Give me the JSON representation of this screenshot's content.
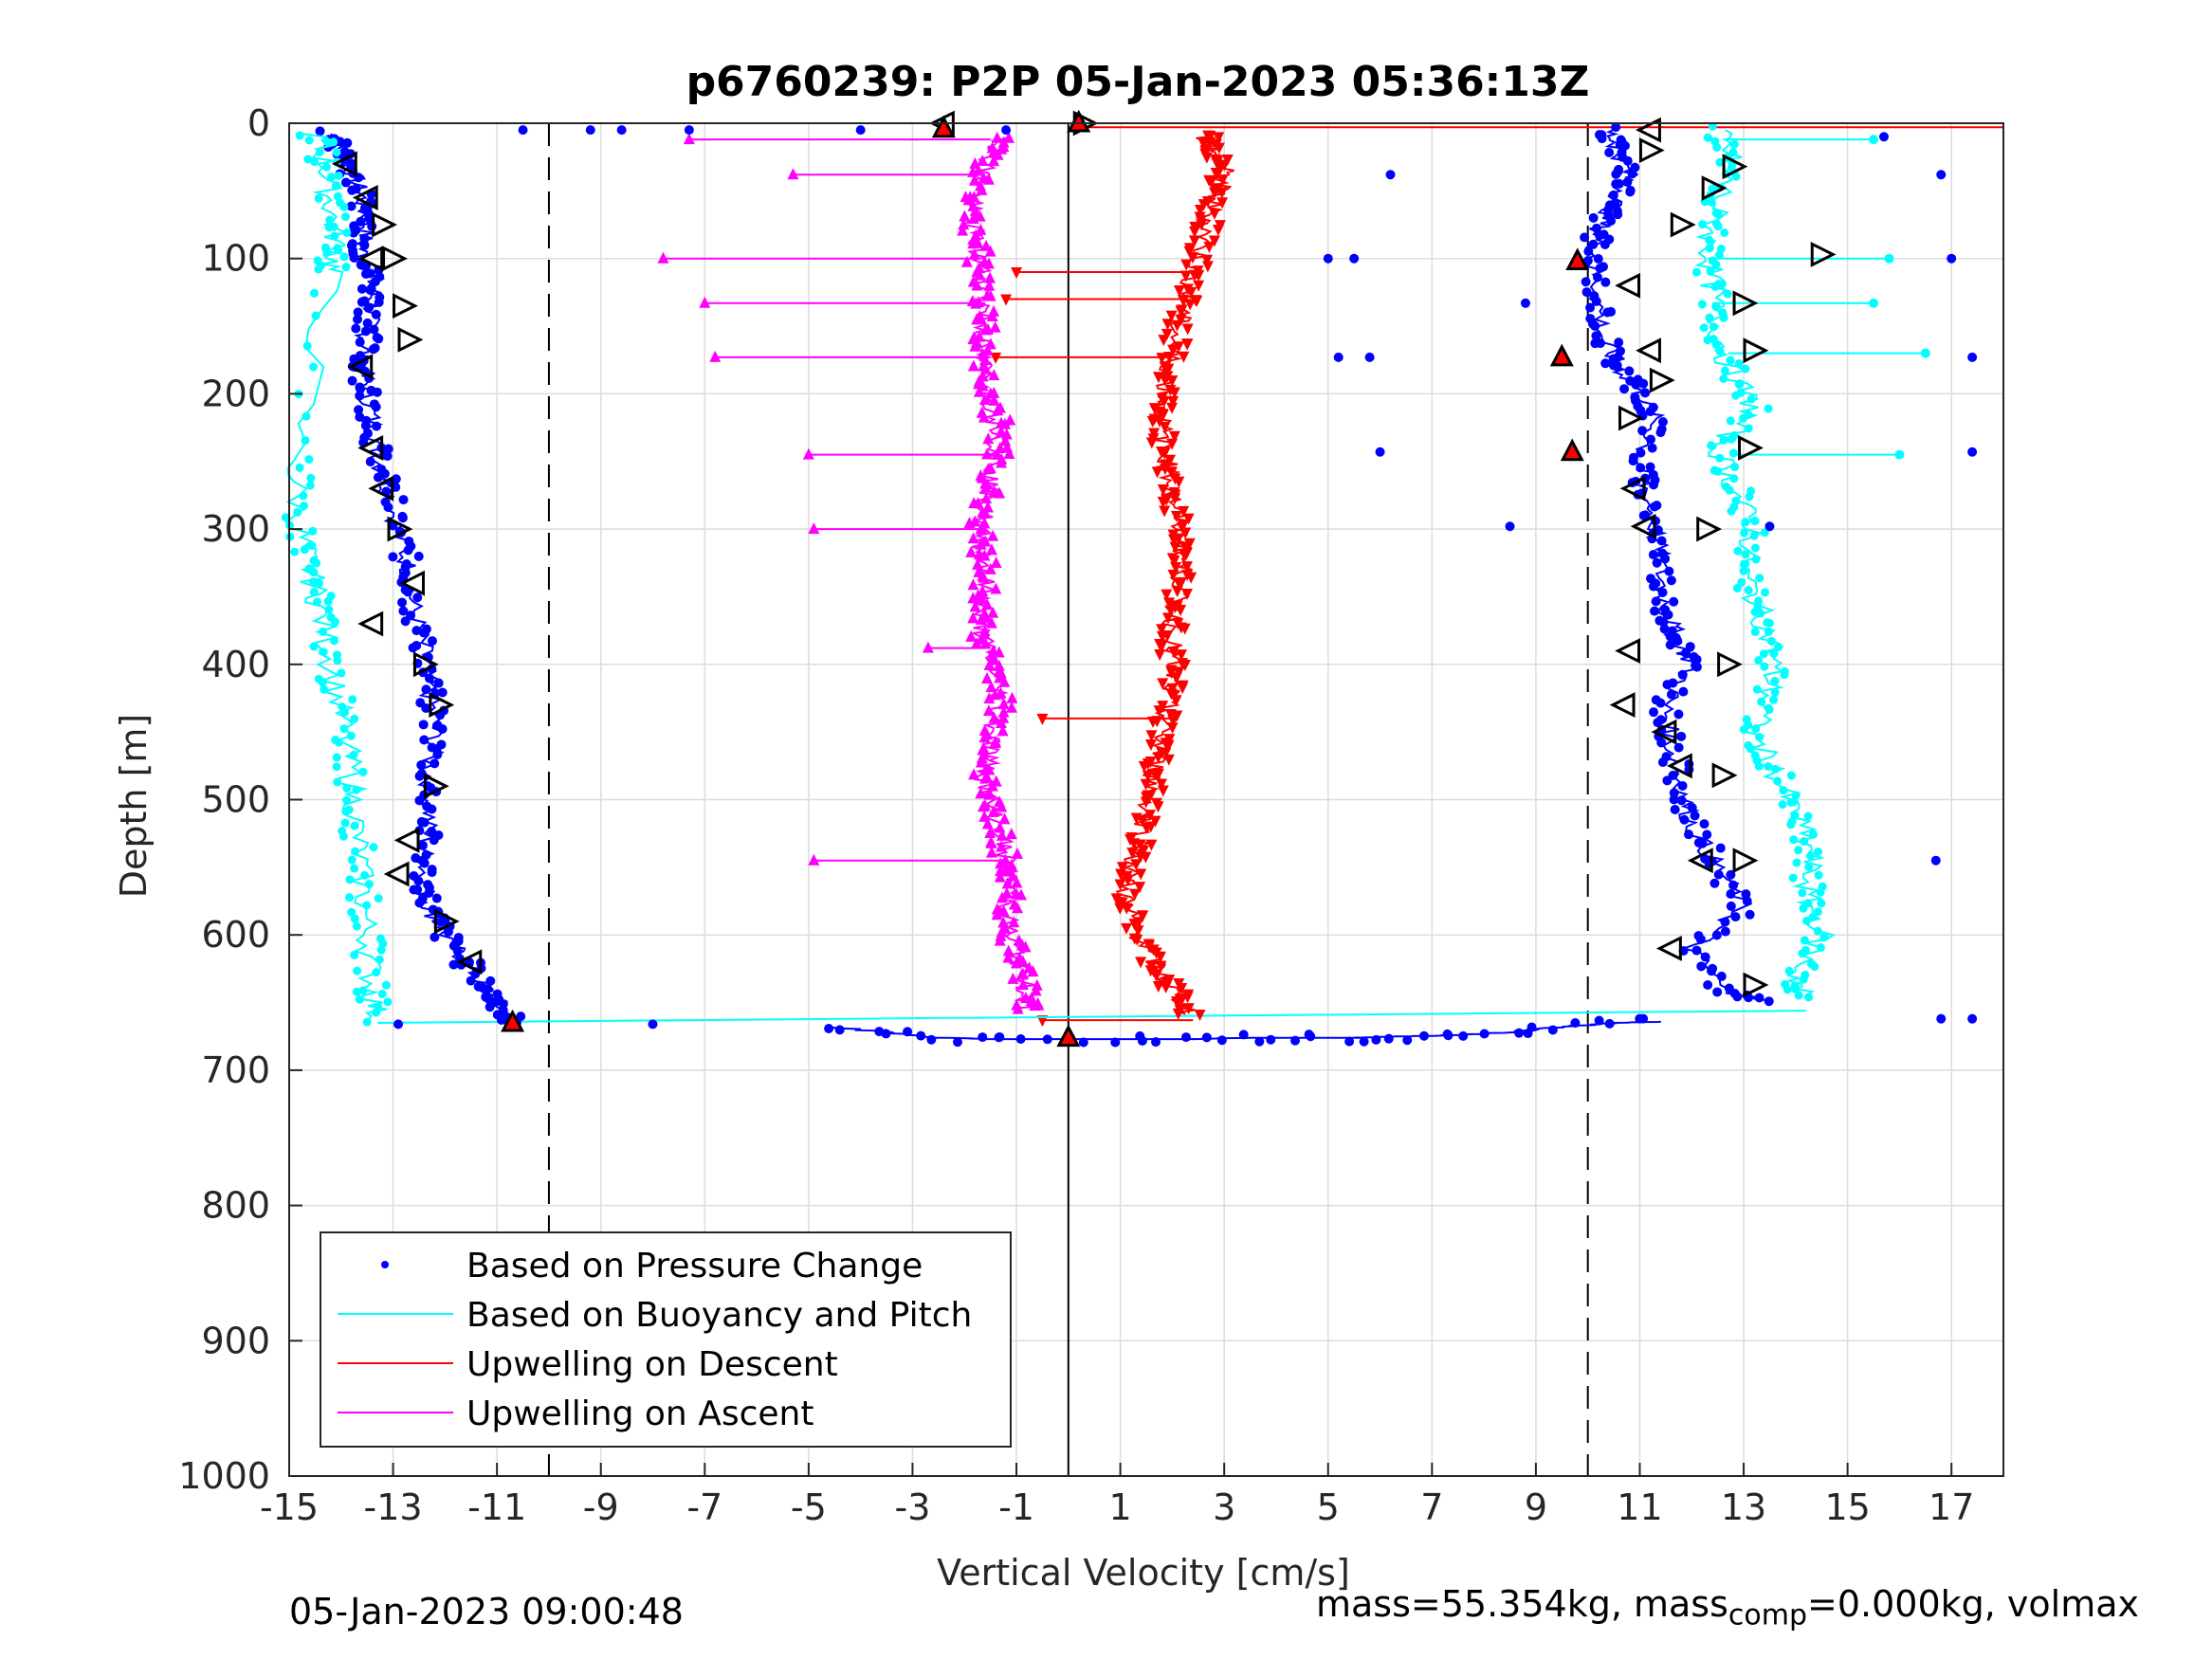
{
  "chart_data": {
    "type": "scatter",
    "title": "p6760239: P2P 05-Jan-2023 05:36:13Z",
    "xlabel": "Vertical Velocity [cm/s]",
    "ylabel": "Depth [m]",
    "xlim": [
      -15,
      18
    ],
    "ylim": [
      0,
      1000
    ],
    "y_reversed": true,
    "grid": true,
    "x_ticks": [
      -15,
      -13,
      -11,
      -9,
      -7,
      -5,
      -3,
      -1,
      1,
      3,
      5,
      7,
      9,
      11,
      13,
      15,
      17
    ],
    "y_ticks": [
      0,
      100,
      200,
      300,
      400,
      500,
      600,
      700,
      800,
      900,
      1000
    ],
    "reference_lines": [
      {
        "x": -10,
        "style": "dashed"
      },
      {
        "x": 0,
        "style": "solid"
      },
      {
        "x": 10,
        "style": "dashed"
      }
    ],
    "legend": {
      "placement": "bottom-left",
      "entries": [
        {
          "label": "Based on Pressure Change",
          "color": "#0000ff",
          "marker": "dot"
        },
        {
          "label": "Based on Buoyancy and Pitch",
          "color": "#00ffff",
          "marker": "line"
        },
        {
          "label": "Upwelling on Descent",
          "color": "#ff0000",
          "marker": "line"
        },
        {
          "label": "Upwelling on Ascent",
          "color": "#ff00ff",
          "marker": "line"
        }
      ]
    },
    "series": [
      {
        "key": "pressure_descent",
        "color": "#0000ff",
        "points": [
          [
            -14.2,
            8
          ],
          [
            -14.0,
            20
          ],
          [
            -13.8,
            35
          ],
          [
            -13.6,
            55
          ],
          [
            -13.5,
            75
          ],
          [
            -13.6,
            95
          ],
          [
            -13.4,
            115
          ],
          [
            -13.4,
            135
          ],
          [
            -13.5,
            155
          ],
          [
            -13.6,
            175
          ],
          [
            -13.5,
            195
          ],
          [
            -13.4,
            220
          ],
          [
            -13.3,
            245
          ],
          [
            -13.1,
            270
          ],
          [
            -12.9,
            300
          ],
          [
            -12.7,
            330
          ],
          [
            -12.6,
            360
          ],
          [
            -12.4,
            390
          ],
          [
            -12.3,
            420
          ],
          [
            -12.2,
            450
          ],
          [
            -12.3,
            480
          ],
          [
            -12.3,
            510
          ],
          [
            -12.4,
            540
          ],
          [
            -12.4,
            560
          ],
          [
            -12.3,
            580
          ],
          [
            -12.0,
            600
          ],
          [
            -11.6,
            620
          ],
          [
            -11.2,
            640
          ],
          [
            -10.9,
            655
          ],
          [
            -10.7,
            665
          ]
        ]
      },
      {
        "key": "buoyancy_descent",
        "color": "#00ffff",
        "points": [
          [
            -14.5,
            8
          ],
          [
            -14.3,
            30
          ],
          [
            -14.2,
            60
          ],
          [
            -14.1,
            90
          ],
          [
            -14.2,
            110
          ],
          [
            -14.9,
            250
          ],
          [
            -14.8,
            300
          ],
          [
            -14.6,
            330
          ],
          [
            -14.4,
            360
          ],
          [
            -14.2,
            400
          ],
          [
            -14.0,
            440
          ],
          [
            -13.8,
            480
          ],
          [
            -13.7,
            520
          ],
          [
            -13.6,
            560
          ],
          [
            -13.5,
            600
          ],
          [
            -13.4,
            640
          ],
          [
            -13.3,
            665
          ]
        ]
      },
      {
        "key": "pressure_ascent",
        "color": "#0000ff",
        "points": [
          [
            10.4,
            5
          ],
          [
            10.6,
            20
          ],
          [
            10.8,
            40
          ],
          [
            10.5,
            60
          ],
          [
            10.2,
            80
          ],
          [
            10.1,
            100
          ],
          [
            10.2,
            130
          ],
          [
            10.3,
            160
          ],
          [
            10.6,
            180
          ],
          [
            11.0,
            200
          ],
          [
            11.3,
            220
          ],
          [
            11.0,
            250
          ],
          [
            11.1,
            270
          ],
          [
            11.3,
            300
          ],
          [
            11.4,
            330
          ],
          [
            11.5,
            360
          ],
          [
            11.7,
            380
          ],
          [
            12.0,
            400
          ],
          [
            11.5,
            430
          ],
          [
            11.6,
            460
          ],
          [
            11.8,
            490
          ],
          [
            12.0,
            520
          ],
          [
            12.5,
            550
          ],
          [
            13.0,
            580
          ],
          [
            12.0,
            610
          ],
          [
            12.6,
            640
          ],
          [
            13.5,
            650
          ]
        ]
      },
      {
        "key": "buoyancy_ascent",
        "color": "#00ffff",
        "points": [
          [
            12.5,
            5
          ],
          [
            12.8,
            30
          ],
          [
            12.5,
            60
          ],
          [
            12.3,
            90
          ],
          [
            12.4,
            120
          ],
          [
            12.5,
            150
          ],
          [
            12.7,
            180
          ],
          [
            13.2,
            210
          ],
          [
            12.5,
            240
          ],
          [
            12.8,
            270
          ],
          [
            13.2,
            300
          ],
          [
            13.0,
            330
          ],
          [
            13.3,
            360
          ],
          [
            13.6,
            390
          ],
          [
            13.5,
            420
          ],
          [
            13.2,
            450
          ],
          [
            13.6,
            480
          ],
          [
            14.0,
            510
          ],
          [
            14.3,
            540
          ],
          [
            14.2,
            570
          ],
          [
            14.5,
            600
          ],
          [
            14.0,
            630
          ],
          [
            14.2,
            650
          ]
        ]
      },
      {
        "key": "bottom_transition",
        "color": "#0000ff",
        "points": [
          [
            -4.5,
            668
          ],
          [
            -3.5,
            672
          ],
          [
            -2.5,
            676
          ],
          [
            -1.5,
            677
          ],
          [
            -0.5,
            677
          ],
          [
            0.5,
            677
          ],
          [
            1.5,
            677
          ],
          [
            2.5,
            677
          ],
          [
            3.5,
            676
          ],
          [
            4.5,
            676
          ],
          [
            5.5,
            676
          ],
          [
            6.5,
            675
          ],
          [
            7.5,
            674
          ],
          [
            8.5,
            672
          ],
          [
            9.5,
            668
          ],
          [
            10.5,
            665
          ],
          [
            11.5,
            664
          ]
        ]
      },
      {
        "key": "upwelling_descent",
        "color": "#ff0000",
        "points": [
          [
            2.6,
            10
          ],
          [
            2.8,
            20
          ],
          [
            3.0,
            35
          ],
          [
            2.9,
            50
          ],
          [
            2.7,
            70
          ],
          [
            2.6,
            90
          ],
          [
            2.4,
            110
          ],
          [
            2.3,
            130
          ],
          [
            2.1,
            150
          ],
          [
            2.0,
            170
          ],
          [
            1.9,
            190
          ],
          [
            1.8,
            210
          ],
          [
            1.8,
            230
          ],
          [
            1.9,
            250
          ],
          [
            2.0,
            270
          ],
          [
            2.1,
            290
          ],
          [
            2.2,
            310
          ],
          [
            2.2,
            330
          ],
          [
            2.1,
            350
          ],
          [
            2.0,
            370
          ],
          [
            2.0,
            390
          ],
          [
            2.0,
            410
          ],
          [
            1.9,
            430
          ],
          [
            1.8,
            450
          ],
          [
            1.7,
            470
          ],
          [
            1.6,
            490
          ],
          [
            1.5,
            510
          ],
          [
            1.4,
            530
          ],
          [
            1.2,
            550
          ],
          [
            1.1,
            570
          ],
          [
            1.2,
            590
          ],
          [
            1.5,
            610
          ],
          [
            1.8,
            630
          ],
          [
            2.1,
            645
          ],
          [
            2.4,
            660
          ]
        ]
      },
      {
        "key": "upwelling_ascent",
        "color": "#ff00ff",
        "points": [
          [
            -1.2,
            10
          ],
          [
            -1.5,
            25
          ],
          [
            -1.7,
            45
          ],
          [
            -1.9,
            65
          ],
          [
            -1.8,
            85
          ],
          [
            -1.7,
            105
          ],
          [
            -1.6,
            125
          ],
          [
            -1.6,
            145
          ],
          [
            -1.7,
            165
          ],
          [
            -1.6,
            185
          ],
          [
            -1.5,
            205
          ],
          [
            -1.3,
            225
          ],
          [
            -1.4,
            245
          ],
          [
            -1.5,
            265
          ],
          [
            -1.6,
            285
          ],
          [
            -1.7,
            305
          ],
          [
            -1.6,
            325
          ],
          [
            -1.6,
            345
          ],
          [
            -1.7,
            365
          ],
          [
            -1.6,
            385
          ],
          [
            -1.4,
            405
          ],
          [
            -1.3,
            425
          ],
          [
            -1.4,
            445
          ],
          [
            -1.5,
            465
          ],
          [
            -1.6,
            485
          ],
          [
            -1.5,
            505
          ],
          [
            -1.3,
            525
          ],
          [
            -1.2,
            545
          ],
          [
            -1.1,
            565
          ],
          [
            -1.2,
            585
          ],
          [
            -1.1,
            605
          ],
          [
            -0.9,
            625
          ],
          [
            -0.8,
            645
          ],
          [
            -0.8,
            655
          ]
        ]
      }
    ],
    "spikes": [
      {
        "color": "#ff00ff",
        "segments": [
          [
            -7.3,
            12,
            -1.5
          ],
          [
            -5.3,
            38,
            -1.6
          ],
          [
            -7.8,
            100,
            -1.7
          ],
          [
            -7.0,
            133,
            -1.6
          ],
          [
            -6.8,
            173,
            -1.7
          ],
          [
            -5.0,
            245,
            -1.4
          ],
          [
            -4.9,
            300,
            -1.6
          ],
          [
            -4.9,
            545,
            -1.2
          ],
          [
            -2.7,
            388,
            -1.6
          ]
        ]
      },
      {
        "color": "#ff0000",
        "segments": [
          [
            -1.0,
            110,
            2.4
          ],
          [
            -1.2,
            130,
            2.3
          ],
          [
            -1.4,
            173,
            2.0
          ],
          [
            -0.5,
            440,
            2.0
          ],
          [
            -0.5,
            663,
            2.4
          ]
        ]
      },
      {
        "color": "#00ffff",
        "segments": [
          [
            15.5,
            12,
            12.6
          ],
          [
            15.8,
            100,
            12.3
          ],
          [
            15.5,
            133,
            12.4
          ],
          [
            16.5,
            170,
            12.7
          ],
          [
            16.0,
            245,
            12.8
          ]
        ]
      }
    ],
    "scattered_points": [
      [
        -9.2,
        5
      ],
      [
        -8.6,
        5
      ],
      [
        -7.3,
        5
      ],
      [
        -4.0,
        5
      ],
      [
        -1.2,
        5
      ],
      [
        -10.5,
        5
      ],
      [
        6.2,
        38
      ],
      [
        15.7,
        10
      ],
      [
        16.8,
        38
      ],
      [
        17.0,
        100
      ],
      [
        5.0,
        100
      ],
      [
        5.5,
        100
      ],
      [
        8.8,
        133
      ],
      [
        5.2,
        173
      ],
      [
        5.8,
        173
      ],
      [
        17.4,
        173
      ],
      [
        6.0,
        243
      ],
      [
        17.4,
        243
      ],
      [
        8.5,
        298
      ],
      [
        13.5,
        298
      ],
      [
        16.7,
        545
      ],
      [
        16.8,
        662
      ],
      [
        17.4,
        662
      ],
      [
        -12.9,
        666
      ],
      [
        -8.0,
        666
      ]
    ],
    "markers_open": [
      {
        "dir": "left",
        "points": [
          [
            -13.9,
            30
          ],
          [
            -13.5,
            55
          ],
          [
            -13.4,
            100
          ],
          [
            -13.6,
            180
          ],
          [
            -13.4,
            240
          ],
          [
            -13.2,
            270
          ],
          [
            -13.4,
            370
          ],
          [
            -12.6,
            340
          ],
          [
            -12.7,
            530
          ],
          [
            -12.9,
            555
          ],
          [
            -11.5,
            620
          ],
          [
            11.2,
            5
          ],
          [
            10.8,
            120
          ],
          [
            11.2,
            168
          ],
          [
            10.9,
            270
          ],
          [
            11.1,
            298
          ],
          [
            10.8,
            390
          ],
          [
            10.7,
            430
          ],
          [
            11.5,
            450
          ],
          [
            11.8,
            475
          ],
          [
            12.2,
            545
          ],
          [
            11.6,
            610
          ],
          [
            -2.4,
            0
          ]
        ]
      },
      {
        "dir": "right",
        "points": [
          [
            -13.2,
            75
          ],
          [
            -13.0,
            100
          ],
          [
            -12.8,
            135
          ],
          [
            -12.7,
            160
          ],
          [
            -12.9,
            300
          ],
          [
            -12.4,
            400
          ],
          [
            -12.1,
            430
          ],
          [
            -12.2,
            490
          ],
          [
            -12.0,
            590
          ],
          [
            11.2,
            20
          ],
          [
            12.8,
            32
          ],
          [
            12.4,
            48
          ],
          [
            11.8,
            75
          ],
          [
            14.5,
            97
          ],
          [
            13.0,
            133
          ],
          [
            13.2,
            168
          ],
          [
            11.4,
            190
          ],
          [
            10.8,
            218
          ],
          [
            13.1,
            240
          ],
          [
            12.3,
            300
          ],
          [
            12.7,
            400
          ],
          [
            12.6,
            482
          ],
          [
            13.0,
            545
          ],
          [
            13.2,
            637
          ],
          [
            0.3,
            0
          ]
        ]
      }
    ],
    "markers_red": [
      [
        -2.4,
        4
      ],
      [
        0.2,
        0
      ],
      [
        9.8,
        102
      ],
      [
        9.5,
        173
      ],
      [
        9.7,
        243
      ],
      [
        -10.7,
        665
      ],
      [
        0.0,
        676
      ]
    ]
  },
  "footer": {
    "timestamp": "05-Jan-2023 09:00:48",
    "mass_text": "mass=55.354kg, mass",
    "mass_sub": "comp",
    "mass_rest": "=0.000kg, volmax"
  }
}
